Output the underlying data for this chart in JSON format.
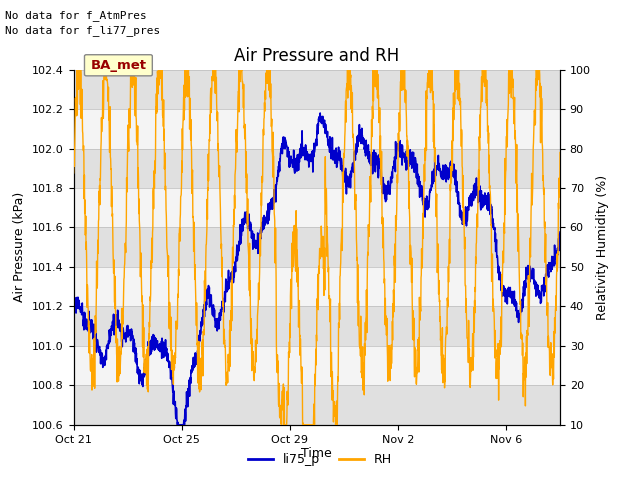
{
  "title": "Air Pressure and RH",
  "ylabel_left": "Air Pressure (kPa)",
  "ylabel_right": "Relativity Humidity (%)",
  "xlabel": "Time",
  "ylim_left": [
    100.6,
    102.4
  ],
  "ylim_right": [
    10,
    100
  ],
  "yticks_left": [
    100.6,
    100.8,
    101.0,
    101.2,
    101.4,
    101.6,
    101.8,
    102.0,
    102.2,
    102.4
  ],
  "yticks_right": [
    10,
    20,
    30,
    40,
    50,
    60,
    70,
    80,
    90,
    100
  ],
  "xtick_labels": [
    "Oct 21",
    "Oct 25",
    "Oct 29",
    "Nov 2",
    "Nov 6"
  ],
  "xtick_positions": [
    0,
    4,
    8,
    12,
    16
  ],
  "xlim": [
    0,
    18
  ],
  "no_data_lines": [
    "No data for f_AtmPres",
    "No data for f_li77_pres"
  ],
  "ba_met_label": "BA_met",
  "legend_entries": [
    "li75_p",
    "RH"
  ],
  "line_color_pressure": "#0000cc",
  "line_color_rh": "#ffa500",
  "band_colors": [
    "#e0e0e0",
    "#f4f4f4"
  ],
  "background_color": "#ffffff",
  "ba_met_bg": "#ffffcc",
  "ba_met_border": "#888888",
  "ba_met_text_color": "#990000",
  "title_fontsize": 12,
  "label_fontsize": 9,
  "tick_fontsize": 8,
  "annotation_fontsize": 8
}
